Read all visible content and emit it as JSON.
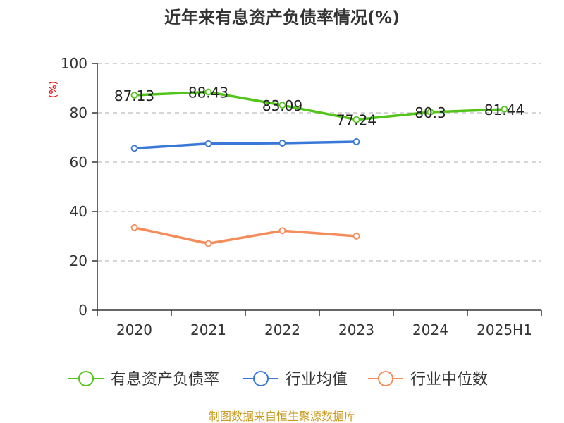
{
  "chart_data": {
    "type": "line",
    "title": "近年来有息资产负债率情况(%)",
    "ylabel": "(%)",
    "xlabel": "",
    "categories": [
      "2020",
      "2021",
      "2022",
      "2023",
      "2024",
      "2025H1"
    ],
    "ylim": [
      0,
      100
    ],
    "yticks": [
      0,
      20,
      40,
      60,
      80,
      100
    ],
    "grid": true,
    "legend_position": "bottom",
    "series": [
      {
        "name": "有息资产负债率",
        "color": "#52c41a",
        "values": [
          87.13,
          88.43,
          83.09,
          77.24,
          80.3,
          81.44
        ],
        "labels": [
          "87.13",
          "88.43",
          "83.09",
          "77.24",
          "80.3",
          "81.44"
        ]
      },
      {
        "name": "行业均值",
        "color": "#3a78d8",
        "values": [
          65.6,
          67.5,
          67.7,
          68.3,
          null,
          null
        ]
      },
      {
        "name": "行业中位数",
        "color": "#f58c5a",
        "values": [
          33.5,
          27.0,
          32.2,
          30.0,
          null,
          null
        ]
      }
    ]
  },
  "source": "制图数据来自恒生聚源数据库"
}
